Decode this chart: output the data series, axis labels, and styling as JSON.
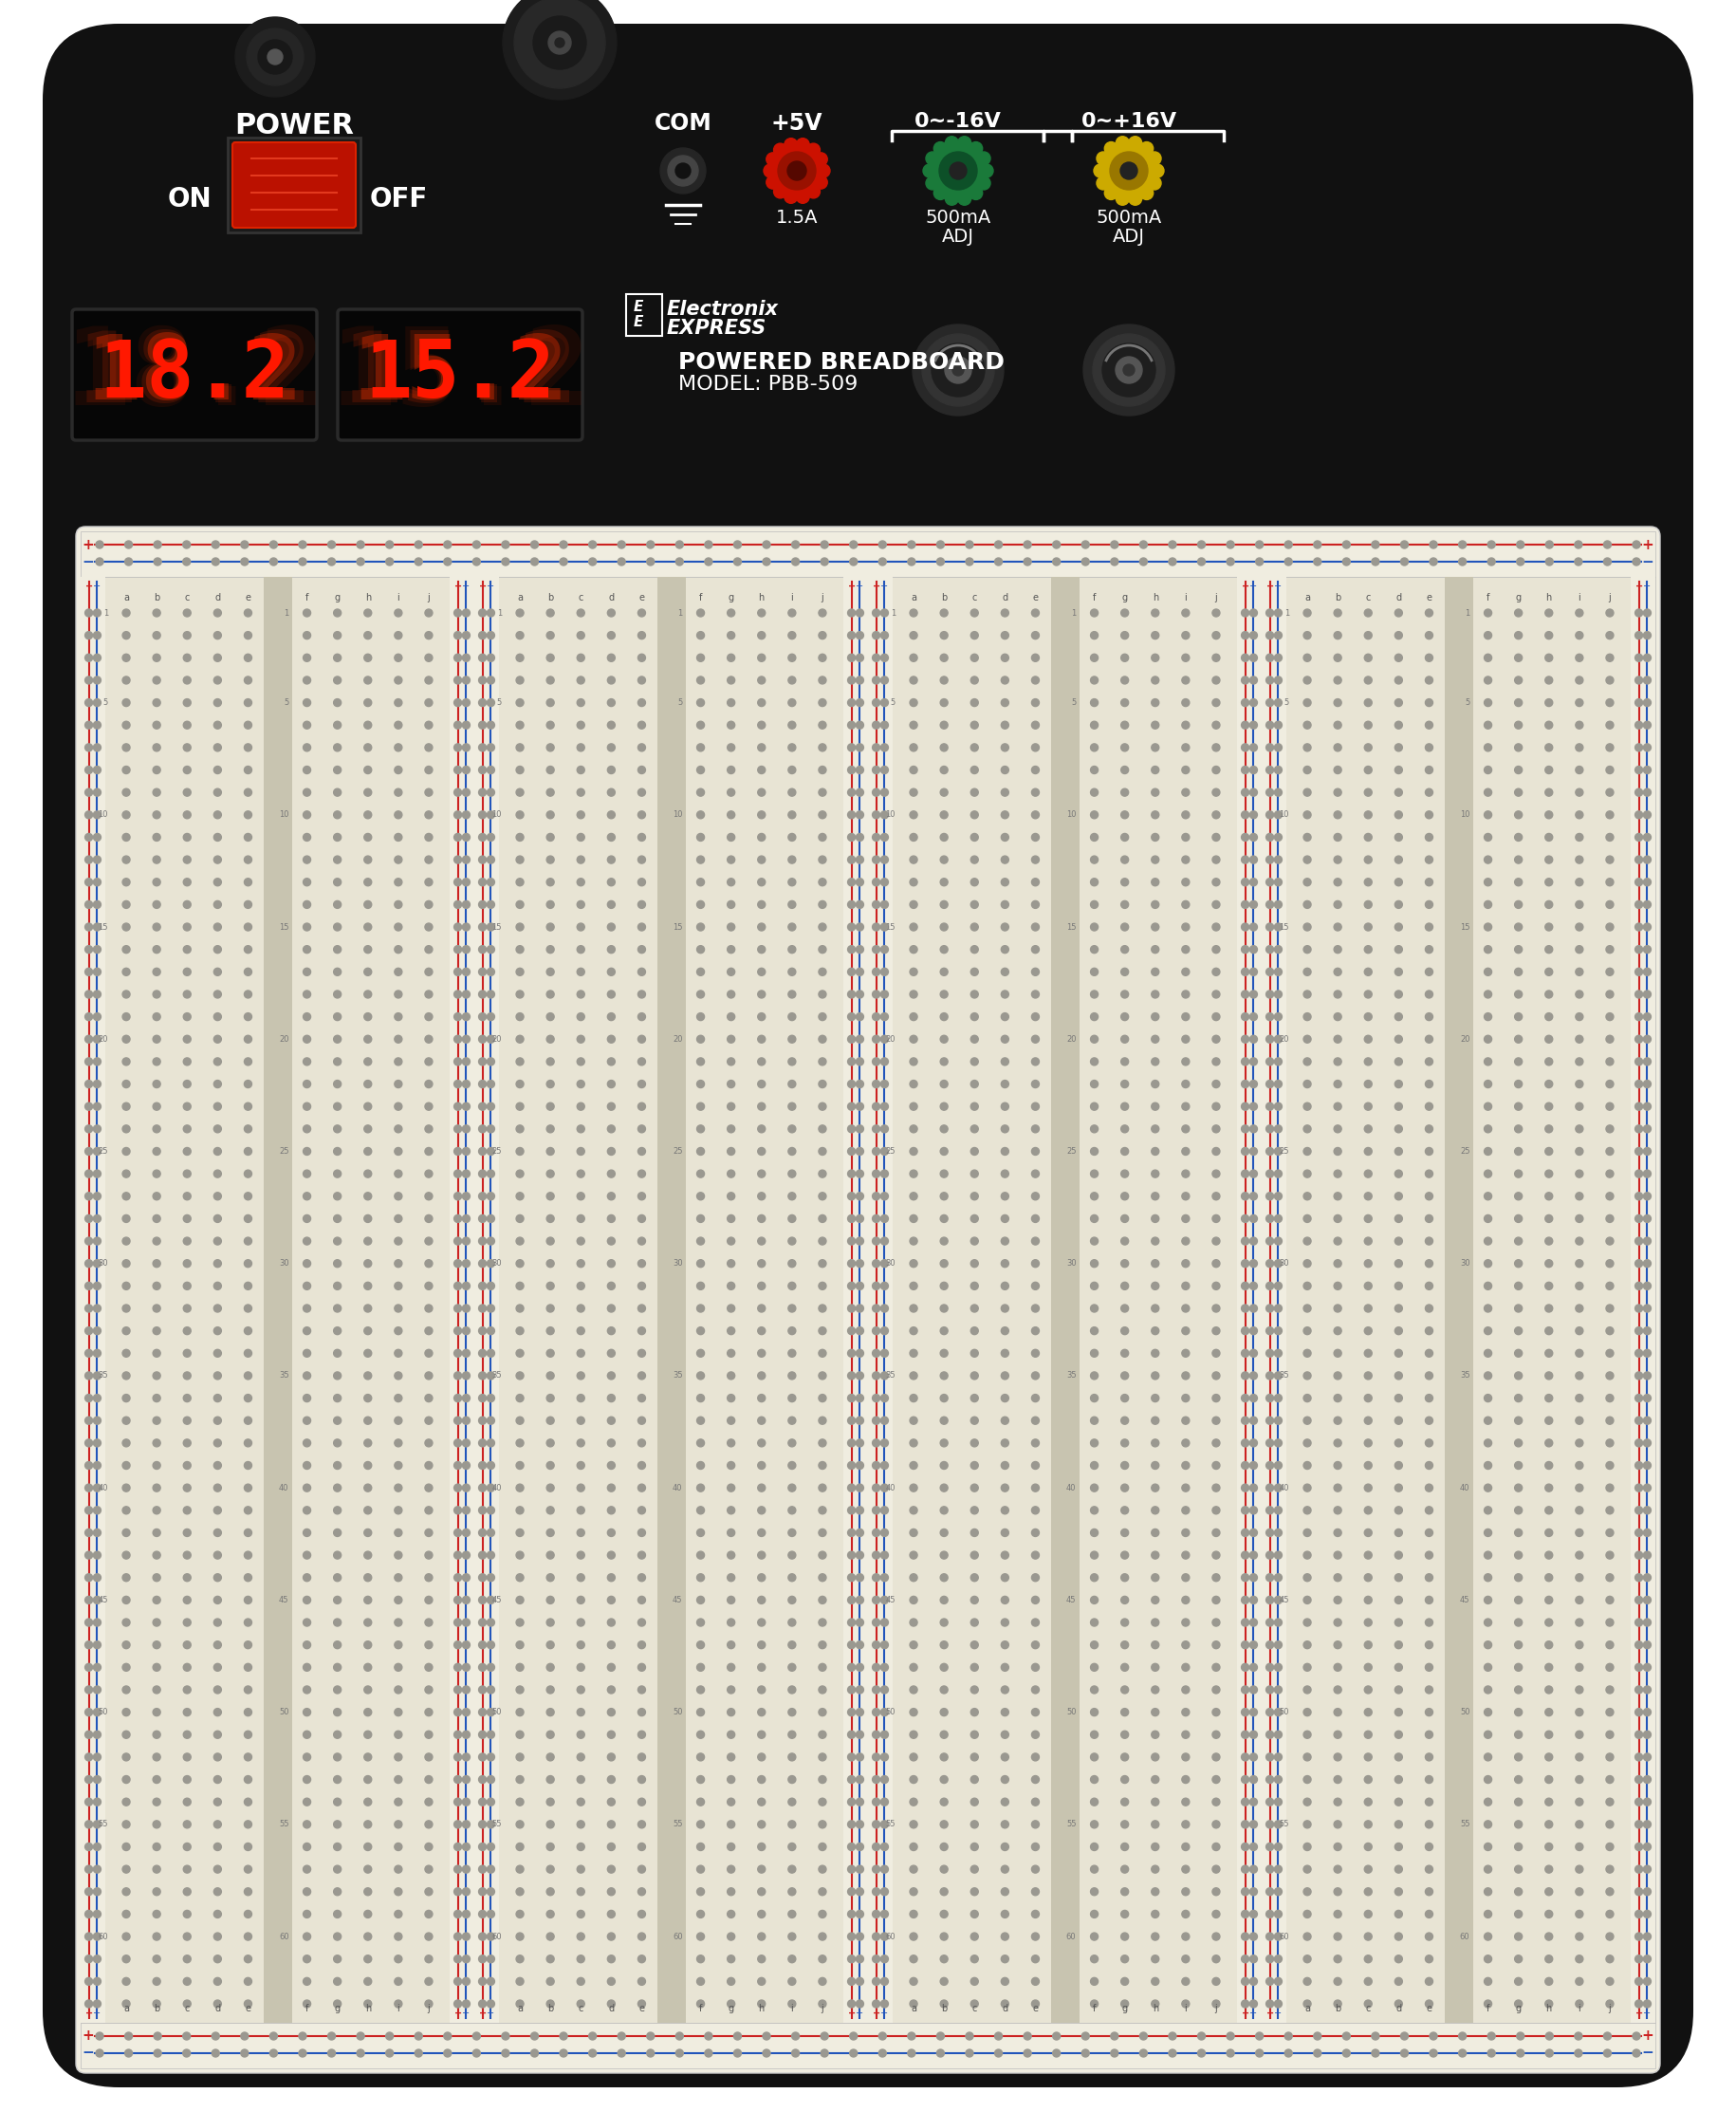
{
  "fig_width": 18.3,
  "fig_height": 22.26,
  "bg_color": "#111111",
  "white": "#ffffff",
  "display1": "18.2",
  "display2": "15.2",
  "led_red": "#ff1800",
  "label_power": "POWER",
  "label_on": "ON",
  "label_off": "OFF",
  "label_com": "COM",
  "label_5v": "+5V",
  "label_neg16v": "0~-16V",
  "label_pos16v": "0~+16V",
  "label_1_5a": "1.5A",
  "label_500ma": "500mA",
  "label_adj": "ADJ",
  "title_line1": "POWERED BREADBOARD",
  "title_line2": "MODEL: PBB-509",
  "banana_black": "#2a2a2a",
  "banana_red": "#cc1100",
  "banana_green": "#1a7a3a",
  "banana_yellow": "#ccaa00",
  "strip_red": "#cc2222",
  "strip_blue": "#2255bb",
  "bb_cream": "#e8e4d4",
  "bb_beige": "#c8c4b0",
  "bb_white": "#f0ede0",
  "n_rows": 63,
  "col_labels_left": [
    "a",
    "b",
    "c",
    "d",
    "e"
  ],
  "col_labels_right": [
    "f",
    "g",
    "h",
    "i",
    "j"
  ],
  "row_labels": [
    1,
    5,
    10,
    15,
    20,
    25,
    30,
    35,
    40,
    45,
    50,
    55,
    60
  ]
}
